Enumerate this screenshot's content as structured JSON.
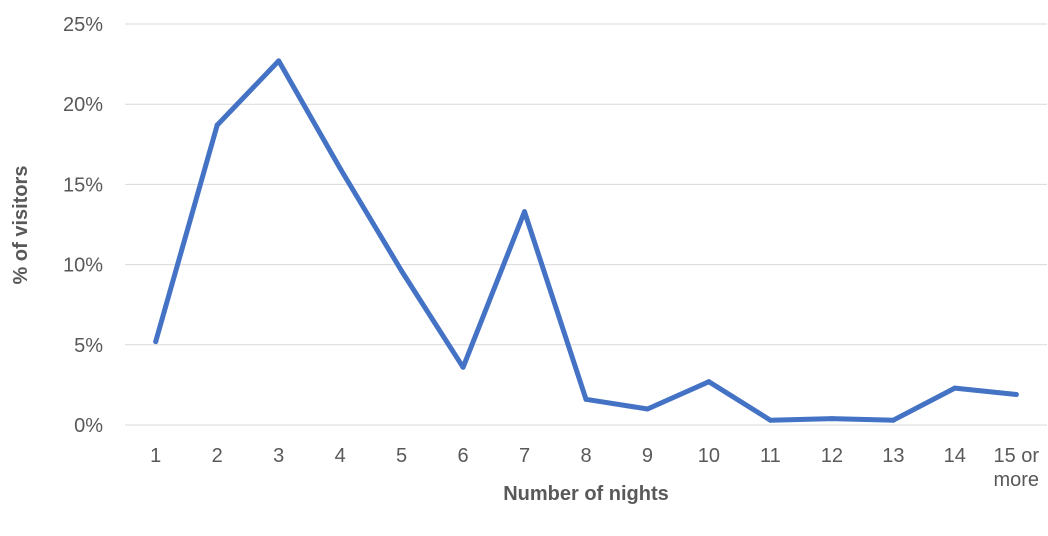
{
  "chart_data": {
    "type": "line",
    "categories": [
      "1",
      "2",
      "3",
      "4",
      "5",
      "6",
      "7",
      "8",
      "9",
      "10",
      "11",
      "12",
      "13",
      "14",
      "15 or more"
    ],
    "series": [
      {
        "values": [
          5.2,
          18.7,
          22.7,
          16.0,
          9.6,
          3.6,
          13.3,
          1.6,
          1.0,
          2.7,
          0.3,
          0.4,
          0.3,
          2.3,
          1.9
        ],
        "color": "#4472c4"
      }
    ],
    "title": "",
    "xlabel": "Number of nights",
    "ylabel": "% of visitors",
    "ylim": [
      0,
      25
    ],
    "yticks": [
      "0%",
      "5%",
      "10%",
      "15%",
      "20%",
      "25%"
    ],
    "ytick_values": [
      0,
      5,
      10,
      15,
      20,
      25
    ],
    "grid": "horizontal",
    "legend": "none"
  }
}
